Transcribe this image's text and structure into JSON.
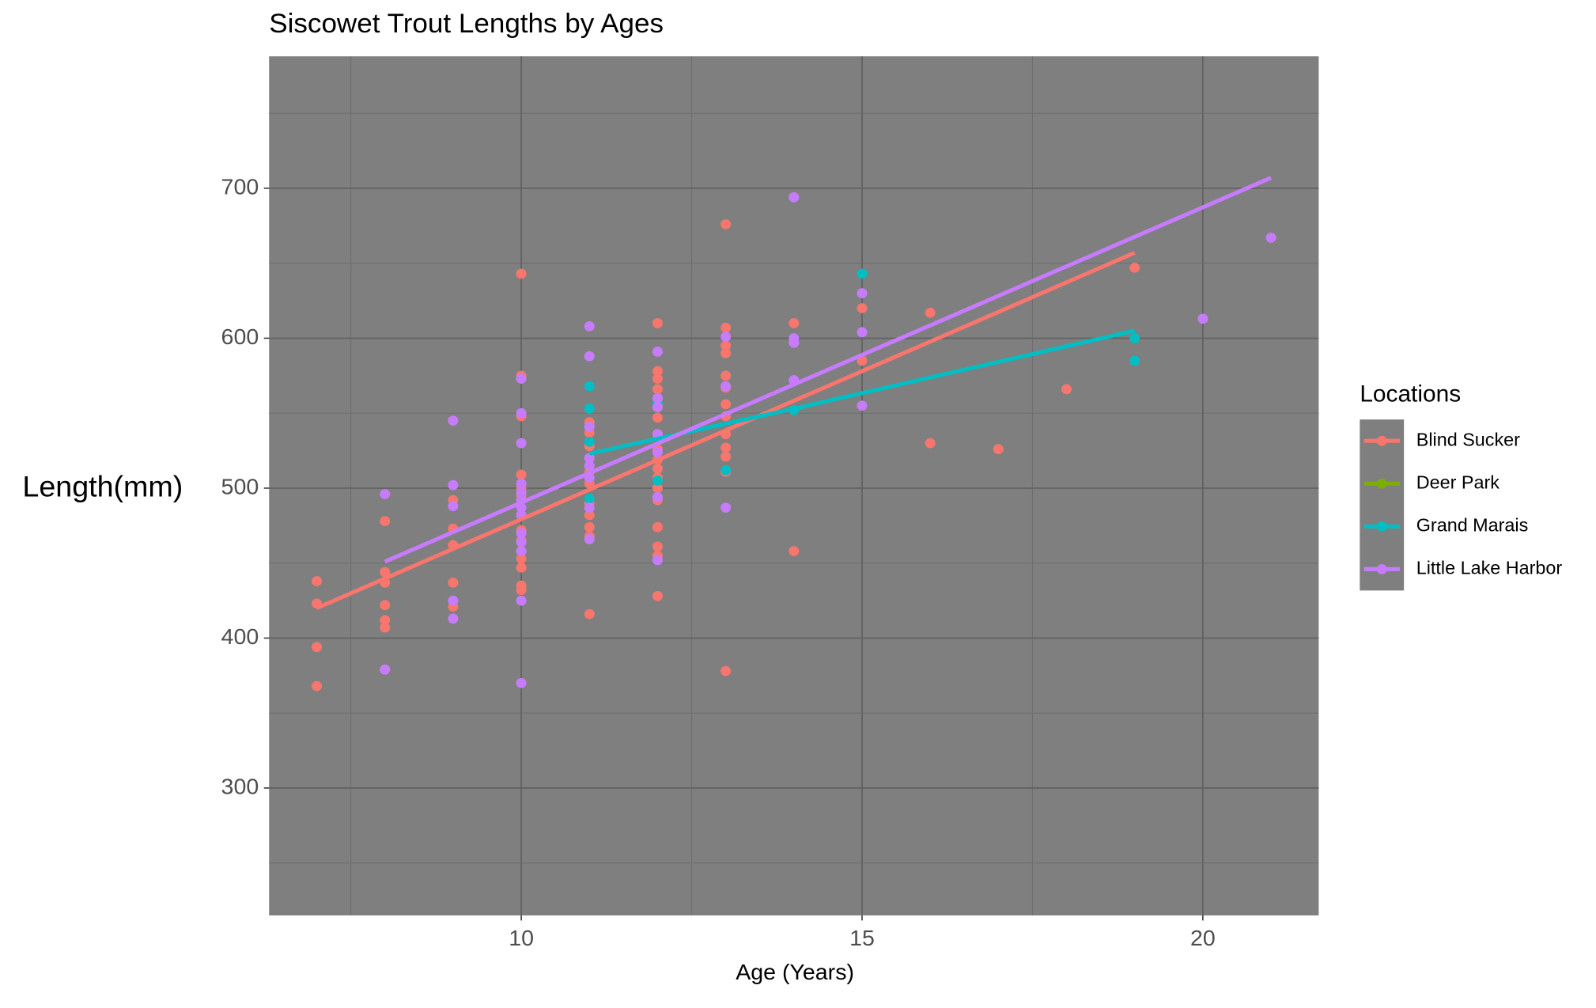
{
  "chart_data": {
    "type": "scatter",
    "title": "Siscowet Trout Lengths by Ages",
    "x_label": "Age (Years)",
    "y_label": "Length(mm)",
    "legend_title": "Locations",
    "legend": "right",
    "xlim": [
      6.3,
      21.7
    ],
    "ylim": [
      215,
      788
    ],
    "xticks": [
      10,
      15,
      20
    ],
    "yticks": [
      300,
      400,
      500,
      600,
      700
    ],
    "grid": true,
    "series": [
      {
        "name": "Blind Sucker",
        "color": "#F8766D",
        "x": [
          7,
          7,
          7,
          7,
          8,
          8,
          8,
          8,
          8,
          8,
          8,
          9,
          9,
          9,
          9,
          9,
          10,
          10,
          10,
          10,
          10,
          10,
          10,
          10,
          10,
          10,
          10,
          10,
          10,
          10,
          11,
          11,
          11,
          11,
          11,
          11,
          11,
          11,
          11,
          11,
          11,
          12,
          12,
          12,
          12,
          12,
          12,
          12,
          12,
          12,
          12,
          12,
          12,
          12,
          12,
          12,
          12,
          12,
          13,
          13,
          13,
          13,
          13,
          13,
          13,
          13,
          13,
          13,
          13,
          13,
          13,
          14,
          14,
          15,
          15,
          16,
          16,
          17,
          18,
          19
        ],
        "values": [
          438,
          423,
          394,
          368,
          478,
          444,
          437,
          422,
          412,
          407,
          379,
          492,
          473,
          462,
          437,
          421,
          643,
          575,
          548,
          509,
          500,
          495,
          482,
          472,
          465,
          458,
          453,
          447,
          435,
          432,
          544,
          537,
          528,
          520,
          511,
          503,
          490,
          482,
          474,
          468,
          416,
          610,
          578,
          573,
          566,
          556,
          547,
          536,
          526,
          519,
          513,
          507,
          500,
          492,
          474,
          461,
          455,
          428,
          676,
          607,
          595,
          590,
          575,
          567,
          556,
          548,
          536,
          527,
          521,
          511,
          378,
          610,
          458,
          620,
          585,
          617,
          530,
          526,
          566,
          647
        ],
        "fit_x": [
          7,
          19
        ],
        "fit_y": [
          420,
          657
        ]
      },
      {
        "name": "Deer Park",
        "color": "#7CAE00",
        "x": [],
        "values": [],
        "fit_x": [],
        "fit_y": []
      },
      {
        "name": "Grand Marais",
        "color": "#00BFC4",
        "x": [
          11,
          11,
          11,
          11,
          12,
          12,
          13,
          14,
          15,
          19,
          19
        ],
        "values": [
          568,
          553,
          531,
          493,
          557,
          505,
          512,
          552,
          643,
          600,
          585
        ],
        "fit_x": [
          11,
          14,
          19
        ],
        "fit_y": [
          523,
          553,
          605
        ]
      },
      {
        "name": "Little Lake Harbor",
        "color": "#C77CFF",
        "x": [
          8,
          8,
          9,
          9,
          9,
          9,
          9,
          10,
          10,
          10,
          10,
          10,
          10,
          10,
          10,
          10,
          10,
          10,
          10,
          10,
          11,
          11,
          11,
          11,
          11,
          11,
          11,
          11,
          12,
          12,
          12,
          12,
          12,
          12,
          12,
          13,
          13,
          13,
          14,
          14,
          14,
          14,
          15,
          15,
          15,
          20,
          21
        ],
        "values": [
          496,
          379,
          545,
          502,
          488,
          425,
          413,
          573,
          550,
          530,
          503,
          497,
          492,
          487,
          482,
          470,
          464,
          458,
          425,
          370,
          608,
          588,
          541,
          520,
          515,
          507,
          487,
          466,
          591,
          560,
          554,
          536,
          524,
          494,
          452,
          601,
          568,
          487,
          694,
          600,
          597,
          572,
          630,
          604,
          555,
          613,
          667
        ],
        "fit_x": [
          8,
          21
        ],
        "fit_y": [
          451,
          707
        ]
      }
    ]
  }
}
